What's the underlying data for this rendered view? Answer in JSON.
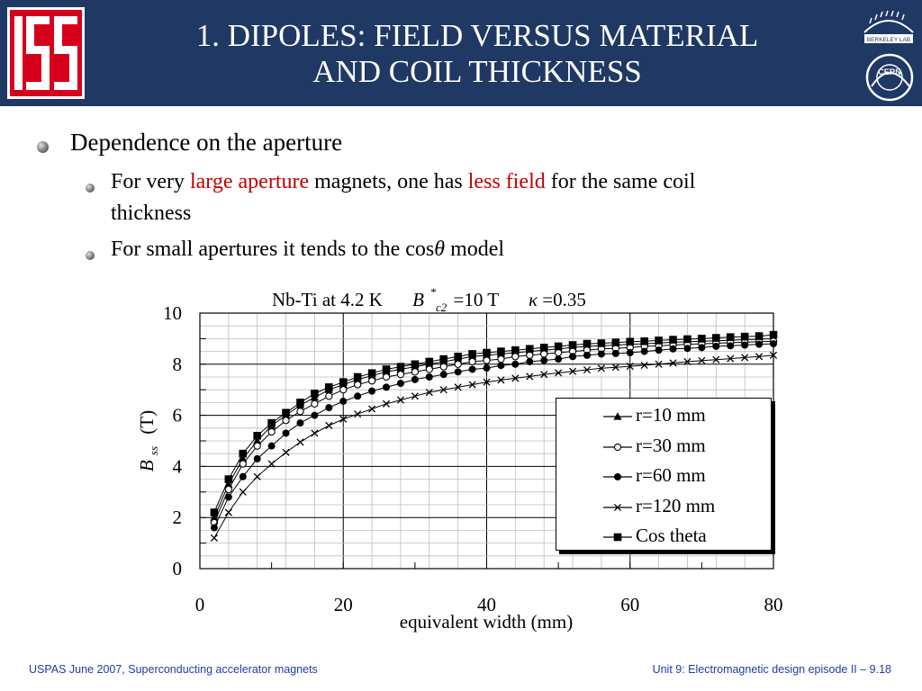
{
  "slide": {
    "title_line1": "1. DIPOLES: FIELD VERSUS MATERIAL",
    "title_line2": "AND COIL THICKNESS",
    "logo_text": "USPAS",
    "berkeley_text": "BERKELEY LAB",
    "cern_text": "CERN",
    "bullet1": "Dependence on the aperture",
    "sub1_part1": "For very ",
    "sub1_hl1": "large aperture",
    "sub1_part2": " magnets, one has ",
    "sub1_hl2": "less field",
    "sub1_part3": " for the same coil",
    "sub1_line2": "thickness",
    "sub2_part1": "For small apertures it tends to the cos",
    "sub2_theta": "θ",
    "sub2_part2": " model",
    "footer_left": "USPAS June  2007,  Superconducting accelerator magnets",
    "footer_right": "Unit 9: Electromagnetic design episode II – 9.18",
    "colors": {
      "header_bg": "#1f3864",
      "highlight": "#c00000",
      "footer_text": "#1f3da0"
    }
  },
  "chart_data": {
    "type": "line",
    "title_parts": {
      "prefix": "Nb-Ti at 4.2 K",
      "b": "B",
      "star": "*",
      "sub": "c2",
      "eq": "=10 T",
      "kappa": "κ",
      "kappa_val": "=0.35"
    },
    "xlabel": "equivalent width (mm)",
    "ylabel_b": "B",
    "ylabel_sub": "ss",
    "ylabel_unit": "(T)",
    "xlim": [
      0,
      80
    ],
    "ylim": [
      0,
      10
    ],
    "xticks": [
      "0",
      "20",
      "40",
      "60",
      "80"
    ],
    "yticks": [
      "0",
      "2",
      "4",
      "6",
      "8",
      "10"
    ],
    "grid": true,
    "legend_position": "lower-right",
    "x": [
      2,
      4,
      6,
      8,
      10,
      12,
      14,
      16,
      18,
      20,
      22,
      24,
      26,
      28,
      30,
      32,
      34,
      36,
      38,
      40,
      42,
      44,
      46,
      48,
      50,
      52,
      54,
      56,
      58,
      60,
      62,
      64,
      66,
      68,
      70,
      72,
      74,
      76,
      78,
      80
    ],
    "series": [
      {
        "name": "r=10 mm",
        "marker": "triangle",
        "values": [
          2.0,
          3.3,
          4.3,
          5.0,
          5.6,
          6.0,
          6.4,
          6.7,
          7.0,
          7.2,
          7.4,
          7.55,
          7.7,
          7.8,
          7.9,
          8.0,
          8.1,
          8.2,
          8.3,
          8.35,
          8.4,
          8.45,
          8.5,
          8.55,
          8.6,
          8.65,
          8.7,
          8.72,
          8.75,
          8.78,
          8.8,
          8.83,
          8.86,
          8.88,
          8.9,
          8.92,
          8.94,
          8.96,
          8.98,
          9.0
        ]
      },
      {
        "name": "r=30 mm",
        "marker": "circle-open",
        "values": [
          1.8,
          3.1,
          4.1,
          4.8,
          5.35,
          5.8,
          6.15,
          6.45,
          6.75,
          7.0,
          7.2,
          7.35,
          7.5,
          7.6,
          7.7,
          7.8,
          7.9,
          8.0,
          8.1,
          8.15,
          8.2,
          8.3,
          8.35,
          8.4,
          8.45,
          8.5,
          8.55,
          8.6,
          8.62,
          8.65,
          8.7,
          8.72,
          8.75,
          8.78,
          8.8,
          8.82,
          8.84,
          8.86,
          8.88,
          8.9
        ]
      },
      {
        "name": "r=60 mm",
        "marker": "circle-filled",
        "values": [
          1.6,
          2.8,
          3.6,
          4.3,
          4.8,
          5.3,
          5.7,
          6.0,
          6.3,
          6.55,
          6.75,
          6.95,
          7.1,
          7.25,
          7.4,
          7.5,
          7.6,
          7.7,
          7.8,
          7.85,
          7.95,
          8.0,
          8.1,
          8.15,
          8.2,
          8.3,
          8.35,
          8.4,
          8.42,
          8.45,
          8.5,
          8.55,
          8.6,
          8.62,
          8.65,
          8.7,
          8.72,
          8.75,
          8.78,
          8.8
        ]
      },
      {
        "name": "r=120 mm",
        "marker": "x",
        "values": [
          1.2,
          2.2,
          3.0,
          3.6,
          4.1,
          4.55,
          4.95,
          5.3,
          5.6,
          5.85,
          6.05,
          6.25,
          6.45,
          6.6,
          6.75,
          6.9,
          7.0,
          7.1,
          7.2,
          7.3,
          7.38,
          7.45,
          7.52,
          7.6,
          7.66,
          7.72,
          7.78,
          7.84,
          7.88,
          7.92,
          7.96,
          8.0,
          8.05,
          8.1,
          8.14,
          8.18,
          8.22,
          8.26,
          8.3,
          8.35
        ]
      },
      {
        "name": "Cos theta",
        "marker": "square",
        "values": [
          2.2,
          3.5,
          4.5,
          5.2,
          5.7,
          6.1,
          6.5,
          6.85,
          7.1,
          7.3,
          7.5,
          7.65,
          7.8,
          7.9,
          8.0,
          8.1,
          8.2,
          8.3,
          8.4,
          8.45,
          8.5,
          8.55,
          8.6,
          8.65,
          8.7,
          8.75,
          8.8,
          8.82,
          8.85,
          8.88,
          8.9,
          8.93,
          8.96,
          8.98,
          9.0,
          9.03,
          9.06,
          9.08,
          9.1,
          9.15
        ]
      }
    ]
  }
}
